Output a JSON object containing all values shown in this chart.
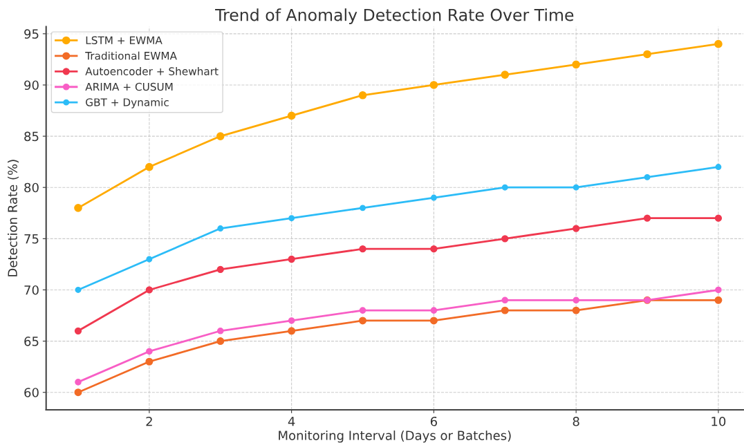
{
  "chart_data": {
    "type": "line",
    "title": "Trend of Anomaly Detection Rate Over Time",
    "xlabel": "Monitoring Interval (Days or Batches)",
    "ylabel": "Detection Rate (%)",
    "x": [
      1,
      2,
      3,
      4,
      5,
      6,
      7,
      8,
      9,
      10
    ],
    "series": [
      {
        "name": "LSTM + EWMA",
        "color": "#ffaa00",
        "values": [
          78,
          82,
          85,
          87,
          89,
          90,
          91,
          92,
          93,
          94
        ]
      },
      {
        "name": "Traditional EWMA",
        "color": "#f26b26",
        "values": [
          60,
          63,
          65,
          66,
          67,
          67,
          68,
          68,
          69,
          69
        ]
      },
      {
        "name": "Autoencoder + Shewhart",
        "color": "#f0384f",
        "values": [
          66,
          70,
          72,
          73,
          74,
          74,
          75,
          76,
          77,
          77
        ]
      },
      {
        "name": "ARIMA + CUSUM",
        "color": "#f85ec5",
        "values": [
          61,
          64,
          66,
          67,
          68,
          68,
          69,
          69,
          69,
          70
        ]
      },
      {
        "name": "GBT + Dynamic",
        "color": "#2cbcf7",
        "values": [
          70,
          73,
          76,
          77,
          78,
          79,
          80,
          80,
          81,
          82
        ]
      }
    ],
    "xlim": [
      0.55,
      10.35
    ],
    "ylim": [
      58.3,
      95.7
    ],
    "xticks": [
      2,
      4,
      6,
      8,
      10
    ],
    "yticks": [
      60,
      65,
      70,
      75,
      80,
      85,
      90,
      95
    ],
    "grid": true,
    "legend": "top left",
    "marker": "circle",
    "line_style": "solid"
  }
}
